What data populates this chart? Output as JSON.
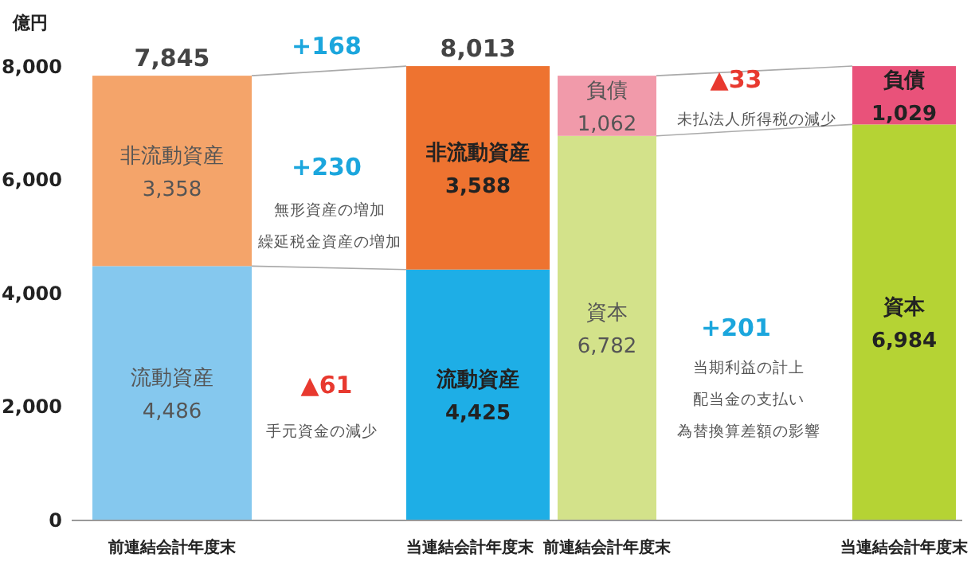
{
  "chart_data": {
    "type": "bar",
    "stacked": true,
    "ylabel": "億円",
    "categories": [
      "前連結会計年度末",
      "当連結会計年度末",
      "前連結会計年度末",
      "当連結会計年度末"
    ],
    "ylim": [
      0,
      8000
    ],
    "yticks": [
      {
        "value": 0,
        "label": "0"
      },
      {
        "value": 2000,
        "label": "2,000"
      },
      {
        "value": 4000,
        "label": "4,000"
      },
      {
        "value": 6000,
        "label": "6,000"
      },
      {
        "value": 8000,
        "label": "8,000"
      }
    ],
    "series": [
      {
        "values": [
          4486,
          4425,
          6782,
          6984
        ],
        "colors": [
          "#85c8ee",
          "#1eaee6",
          "#d3e28a",
          "#b5d334"
        ],
        "value_labels": [
          "流動資産\n4,486",
          "流動資産\n4,425",
          "資本\n6,782",
          "資本\n6,984"
        ]
      },
      {
        "values": [
          3358,
          3588,
          1062,
          1029
        ],
        "colors": [
          "#f4a46a",
          "#ee7330",
          "#f19aaa",
          "#e9527a"
        ],
        "value_labels": [
          "非流動資産\n3,358",
          "非流動資産\n3,588",
          "負債\n1,062",
          "負債\n1,029"
        ]
      }
    ],
    "totals": [
      "7,845",
      "8,013",
      null,
      null
    ],
    "annotations": [
      "+168",
      "+230",
      "無形資産の増加",
      "繰延税金資産の増加",
      "▲61",
      "手元資金の減少",
      "▲33",
      "未払法人所得税の減少",
      "+201",
      "当期利益の計上",
      "配当金の支払い",
      "為替換算差額の影響"
    ],
    "grid": false
  }
}
